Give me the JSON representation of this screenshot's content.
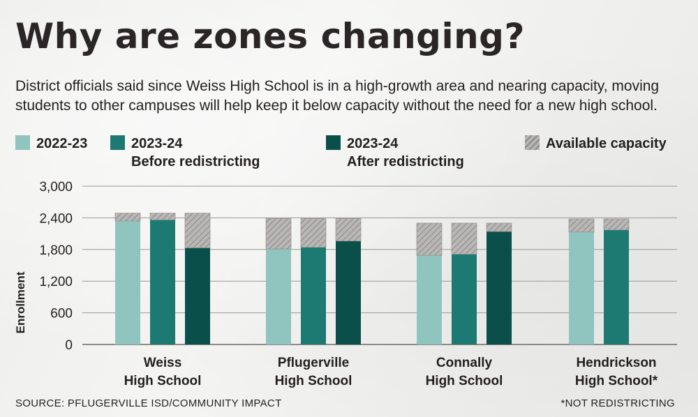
{
  "title": "Why are zones changing?",
  "subtitle": "District officials said since Weiss High School is in a high-growth area and nearing capacity, moving students to other campuses will help keep it below capacity without the need for a new high school.",
  "legend": [
    {
      "label": "2022-23",
      "color": "#8fc4bf"
    },
    {
      "label": "2023-24\nBefore redistricting",
      "color": "#1d7a72"
    },
    {
      "label": "2023-24\nAfter redistricting",
      "color": "#0b4f4a"
    },
    {
      "label": "Available capacity",
      "color": "#b7b5b3"
    }
  ],
  "chart_data": {
    "type": "bar",
    "stacked": true,
    "ylabel": "Enrollment",
    "ylim": [
      0,
      3000
    ],
    "yticks": [
      0,
      600,
      1200,
      1800,
      2400,
      3000
    ],
    "ytick_labels": [
      "0",
      "600",
      "1,200",
      "1,800",
      "2,400",
      "3,000"
    ],
    "grid": true,
    "categories": [
      "Weiss\nHigh School",
      "Pflugerville\nHigh School",
      "Connally\nHigh School",
      "Hendrickson\nHigh School*"
    ],
    "series": [
      {
        "name": "2022-23",
        "color": "#8fc4bf",
        "enrollment": [
          2340,
          1810,
          1690,
          2130
        ],
        "available_capacity": [
          150,
          580,
          610,
          250
        ]
      },
      {
        "name": "2023-24 Before redistricting",
        "color": "#1d7a72",
        "enrollment": [
          2360,
          1840,
          1710,
          2170
        ],
        "available_capacity": [
          130,
          550,
          590,
          210
        ]
      },
      {
        "name": "2023-24 After redistricting",
        "color": "#0b4f4a",
        "enrollment": [
          1830,
          1960,
          2140,
          null
        ],
        "available_capacity": [
          660,
          430,
          160,
          null
        ]
      }
    ]
  },
  "footer": {
    "source": "SOURCE: PFLUGERVILLE ISD/COMMUNITY IMPACT",
    "note": "*NOT REDISTRICTING"
  }
}
